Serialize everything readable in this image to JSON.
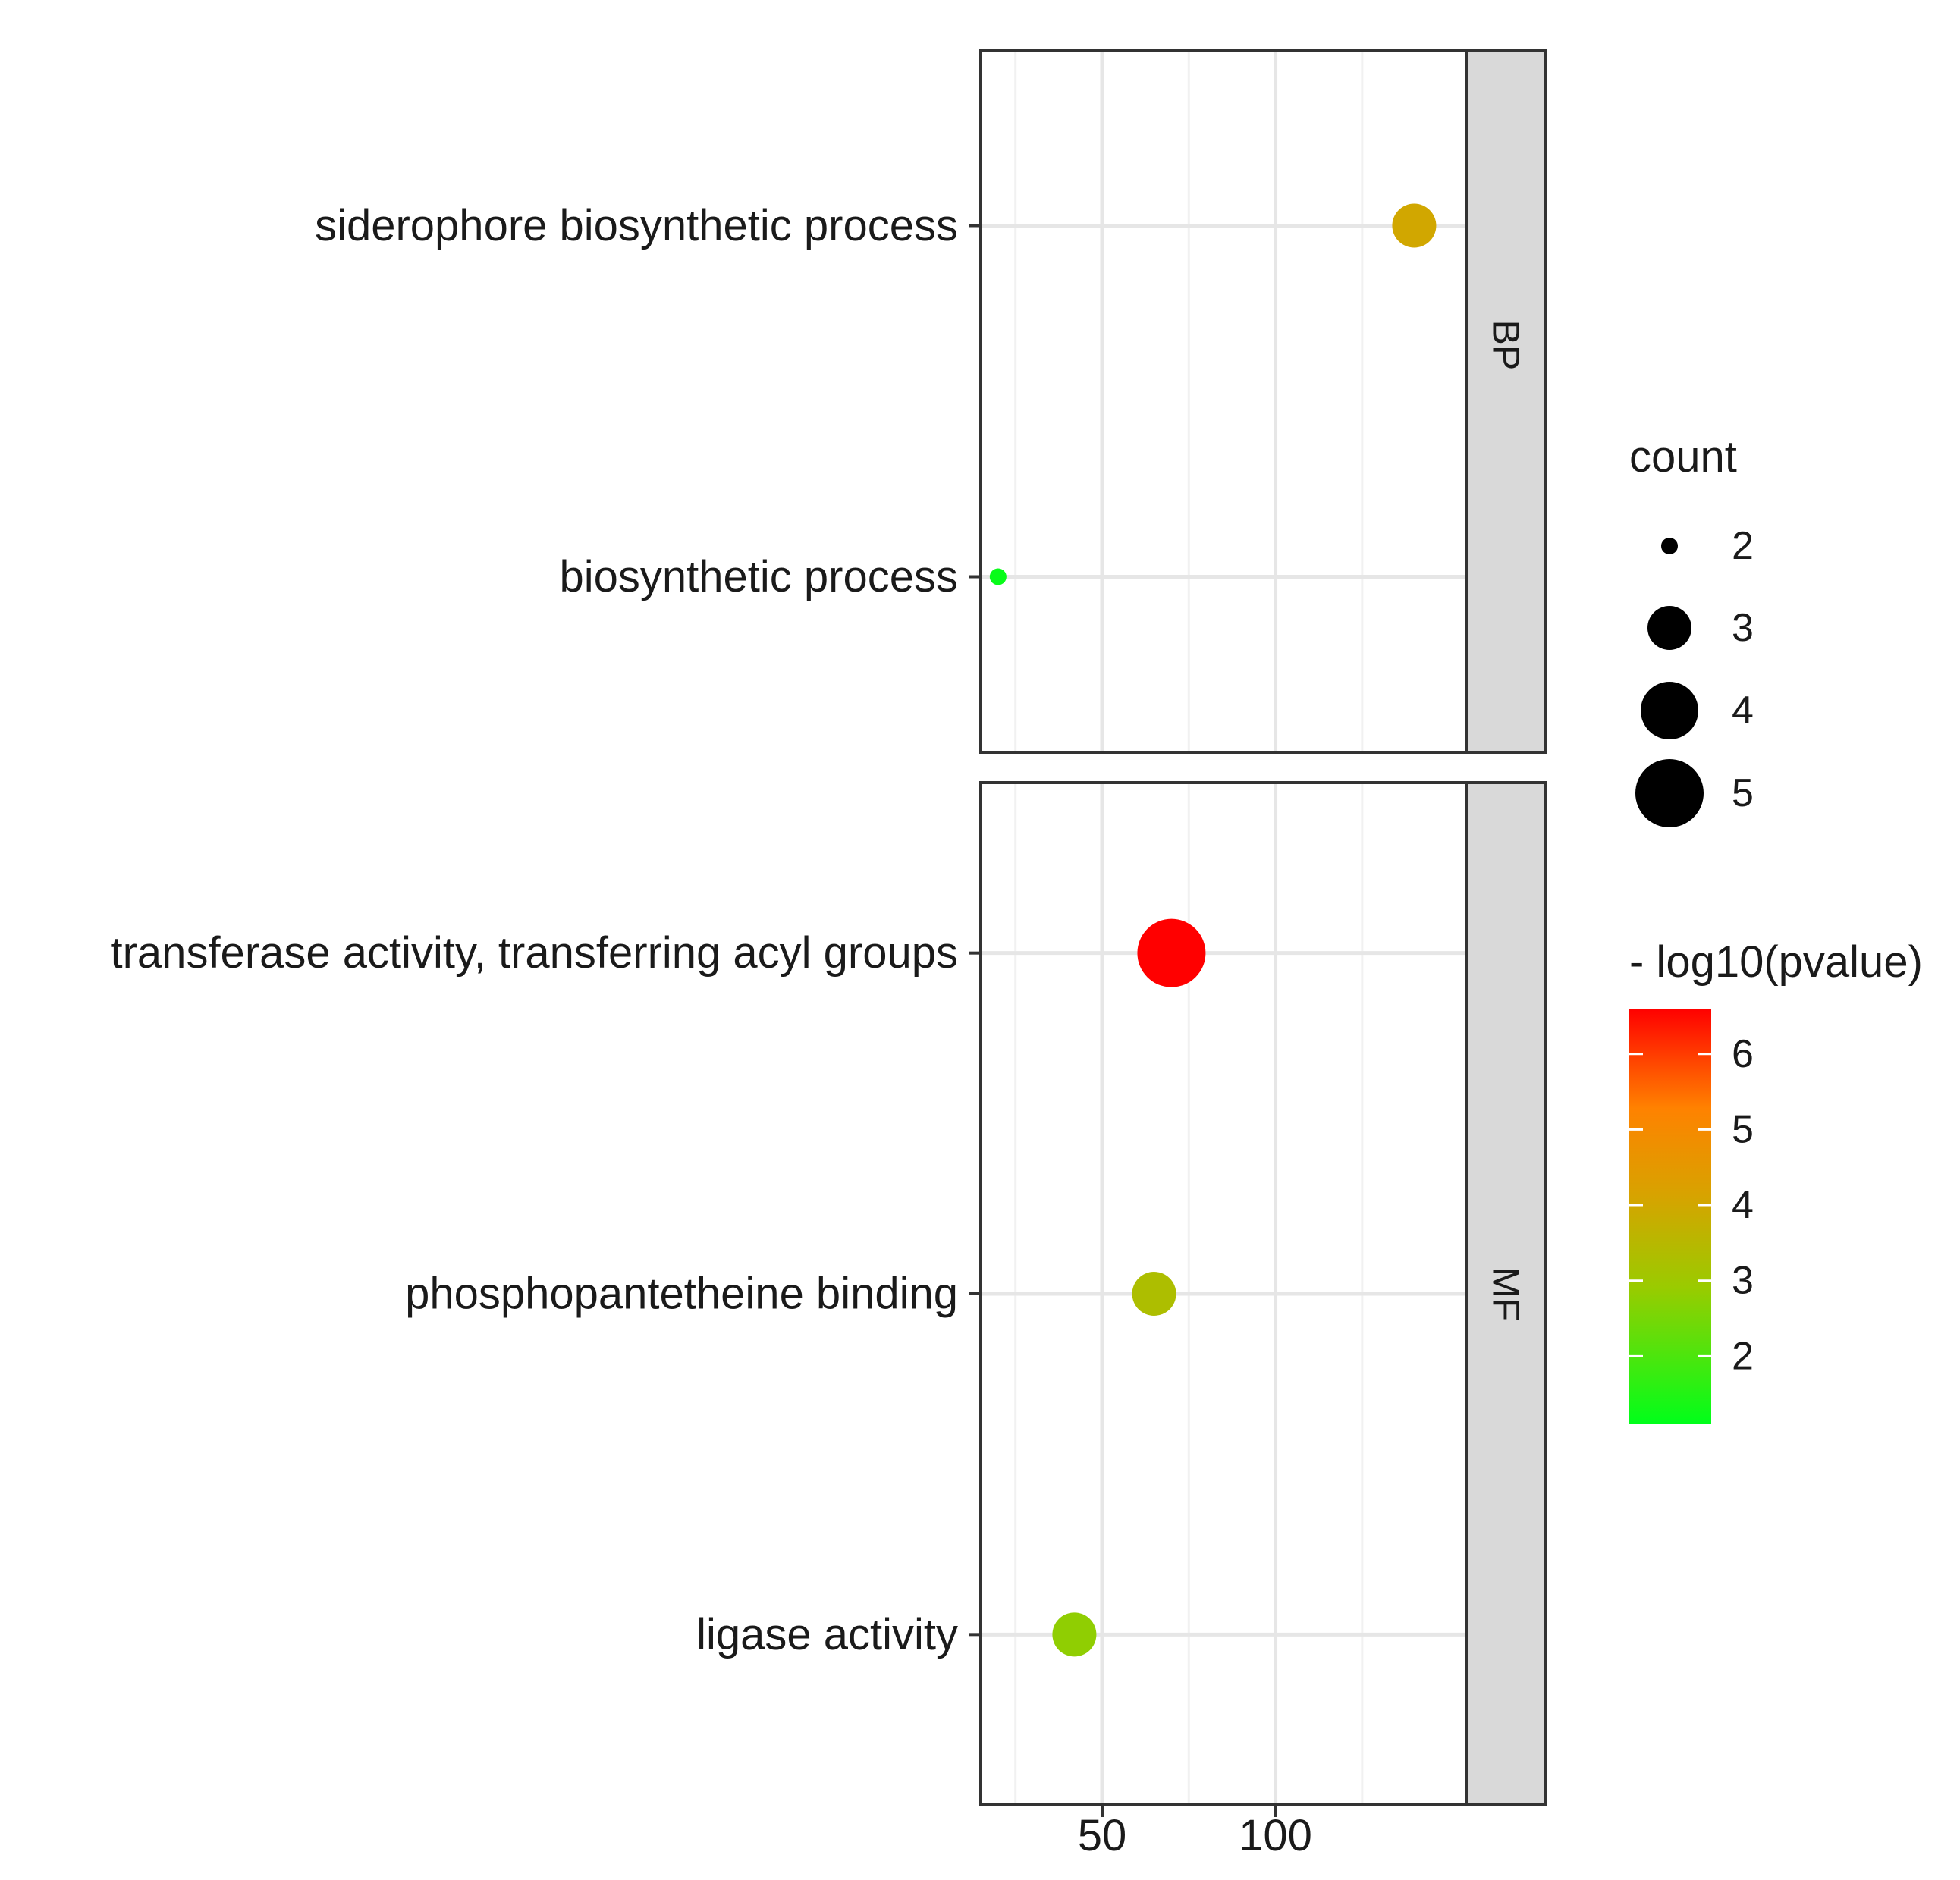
{
  "chart_data": {
    "type": "scatter",
    "x_ticks": [
      50,
      100
    ],
    "xlim": [
      15,
      155
    ],
    "grid": true,
    "facets": [
      {
        "label": "BP",
        "categories": [
          "siderophore biosynthetic process",
          "biosynthetic process"
        ],
        "points": [
          {
            "term": "siderophore biosynthetic process",
            "x": 140,
            "count": 3,
            "neg_log10_pvalue": 4.0
          },
          {
            "term": "biosynthetic process",
            "x": 20,
            "count": 2,
            "neg_log10_pvalue": 1.2
          }
        ]
      },
      {
        "label": "MF",
        "categories": [
          "transferase activity, transferring acyl groups",
          "phosphopantetheine binding",
          "ligase activity"
        ],
        "points": [
          {
            "term": "transferase activity, transferring acyl groups",
            "x": 70,
            "count": 5,
            "neg_log10_pvalue": 6.6
          },
          {
            "term": "phosphopantetheine binding",
            "x": 65,
            "count": 3,
            "neg_log10_pvalue": 3.3
          },
          {
            "term": "ligase activity",
            "x": 42,
            "count": 3,
            "neg_log10_pvalue": 2.8
          }
        ]
      }
    ],
    "legend_size": {
      "title": "count",
      "values": [
        2,
        3,
        4,
        5
      ],
      "placement": "right"
    },
    "legend_color": {
      "title": "- log10(pvalue)",
      "ticks": [
        6,
        5,
        4,
        3,
        2
      ],
      "range": [
        1.1,
        6.6
      ],
      "colors": [
        "#00ff1a",
        "#9acb00",
        "#d7a300",
        "#ff8200",
        "#ff0000"
      ],
      "placement": "right"
    }
  }
}
